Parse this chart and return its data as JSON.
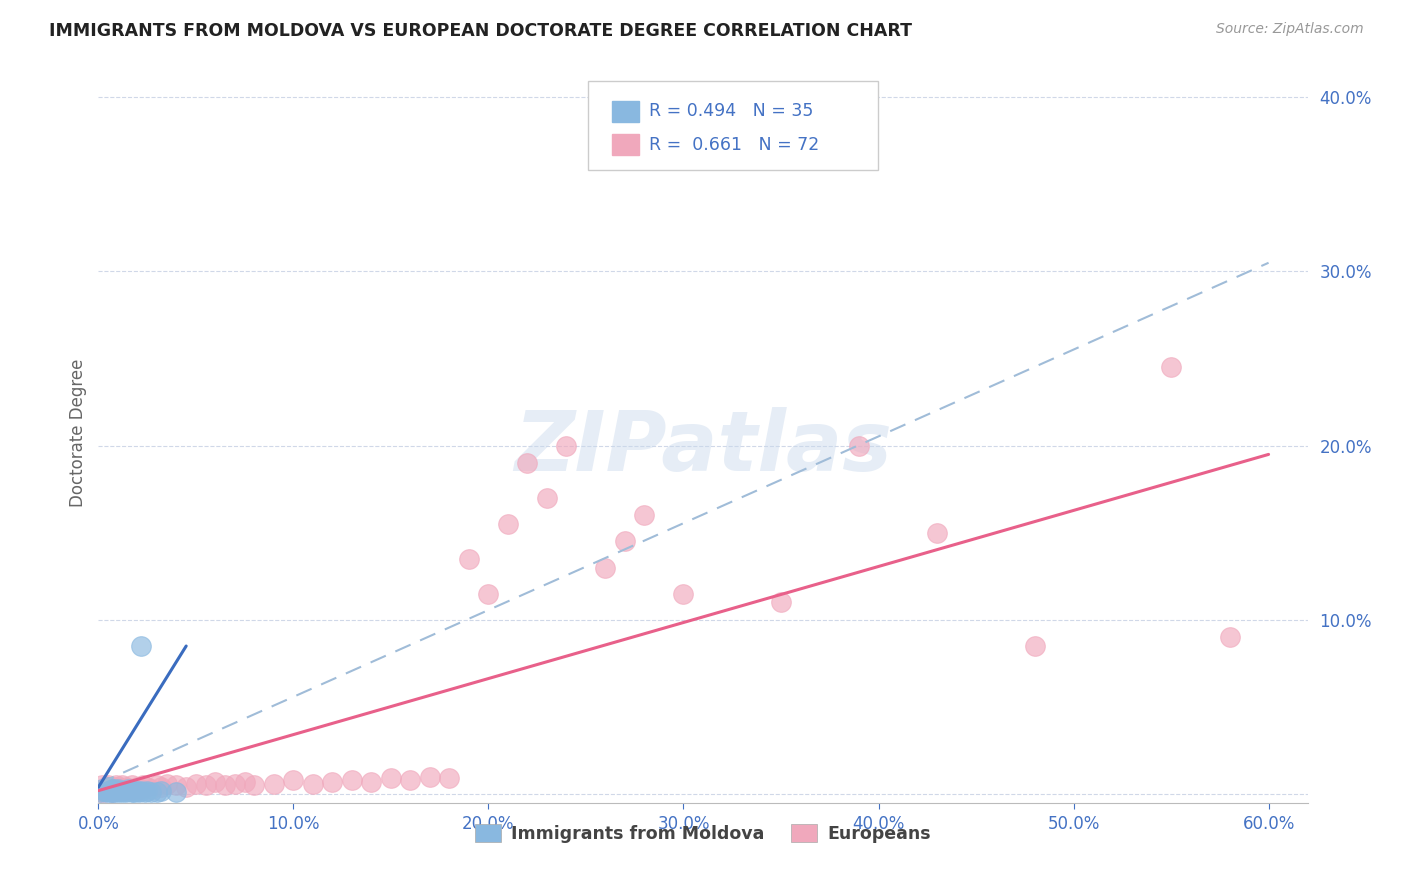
{
  "title": "IMMIGRANTS FROM MOLDOVA VS EUROPEAN DOCTORATE DEGREE CORRELATION CHART",
  "source": "Source: ZipAtlas.com",
  "ylabel_label": "Doctorate Degree",
  "xlim": [
    0.0,
    0.62
  ],
  "ylim": [
    -0.005,
    0.42
  ],
  "xtick_vals": [
    0.0,
    0.1,
    0.2,
    0.3,
    0.4,
    0.5,
    0.6
  ],
  "xtick_labels": [
    "0.0%",
    "10.0%",
    "20.0%",
    "30.0%",
    "40.0%",
    "50.0%",
    "60.0%"
  ],
  "ytick_vals": [
    0.0,
    0.1,
    0.2,
    0.3,
    0.4
  ],
  "ytick_labels": [
    "",
    "10.0%",
    "20.0%",
    "30.0%",
    "40.0%"
  ],
  "moldova_color": "#89b8e0",
  "european_color": "#f0a8bc",
  "moldova_trendline_color": "#3a6cbf",
  "european_trendline_color": "#e8608a",
  "moldova_dashed_color": "#a0bcd8",
  "R_moldova": 0.494,
  "N_moldova": 35,
  "R_european": 0.661,
  "N_european": 72,
  "tick_color": "#4472c4",
  "grid_color": "#d0d8e8",
  "background_color": "#ffffff",
  "watermark": "ZIPatlas",
  "moldova_scatter": [
    [
      0.001,
      0.001
    ],
    [
      0.002,
      0.003
    ],
    [
      0.003,
      0.002
    ],
    [
      0.004,
      0.001
    ],
    [
      0.004,
      0.003
    ],
    [
      0.005,
      0.002
    ],
    [
      0.005,
      0.004
    ],
    [
      0.006,
      0.001
    ],
    [
      0.006,
      0.003
    ],
    [
      0.007,
      0.002
    ],
    [
      0.007,
      0.001
    ],
    [
      0.008,
      0.003
    ],
    [
      0.008,
      0.001
    ],
    [
      0.009,
      0.002
    ],
    [
      0.01,
      0.001
    ],
    [
      0.01,
      0.003
    ],
    [
      0.011,
      0.002
    ],
    [
      0.012,
      0.001
    ],
    [
      0.013,
      0.002
    ],
    [
      0.014,
      0.001
    ],
    [
      0.015,
      0.003
    ],
    [
      0.016,
      0.002
    ],
    [
      0.017,
      0.001
    ],
    [
      0.018,
      0.002
    ],
    [
      0.018,
      0.001
    ],
    [
      0.02,
      0.002
    ],
    [
      0.021,
      0.001
    ],
    [
      0.022,
      0.002
    ],
    [
      0.024,
      0.001
    ],
    [
      0.025,
      0.002
    ],
    [
      0.027,
      0.001
    ],
    [
      0.03,
      0.001
    ],
    [
      0.032,
      0.002
    ],
    [
      0.04,
      0.001
    ],
    [
      0.022,
      0.085
    ]
  ],
  "european_scatter": [
    [
      0.001,
      0.001
    ],
    [
      0.002,
      0.002
    ],
    [
      0.002,
      0.005
    ],
    [
      0.003,
      0.003
    ],
    [
      0.003,
      0.001
    ],
    [
      0.004,
      0.004
    ],
    [
      0.004,
      0.002
    ],
    [
      0.005,
      0.003
    ],
    [
      0.005,
      0.005
    ],
    [
      0.006,
      0.002
    ],
    [
      0.006,
      0.004
    ],
    [
      0.007,
      0.003
    ],
    [
      0.007,
      0.001
    ],
    [
      0.008,
      0.004
    ],
    [
      0.008,
      0.002
    ],
    [
      0.009,
      0.003
    ],
    [
      0.009,
      0.005
    ],
    [
      0.01,
      0.002
    ],
    [
      0.01,
      0.004
    ],
    [
      0.011,
      0.003
    ],
    [
      0.012,
      0.002
    ],
    [
      0.012,
      0.005
    ],
    [
      0.013,
      0.003
    ],
    [
      0.014,
      0.004
    ],
    [
      0.015,
      0.002
    ],
    [
      0.016,
      0.003
    ],
    [
      0.017,
      0.005
    ],
    [
      0.018,
      0.003
    ],
    [
      0.02,
      0.004
    ],
    [
      0.02,
      0.002
    ],
    [
      0.022,
      0.003
    ],
    [
      0.023,
      0.005
    ],
    [
      0.025,
      0.004
    ],
    [
      0.027,
      0.003
    ],
    [
      0.03,
      0.005
    ],
    [
      0.032,
      0.004
    ],
    [
      0.035,
      0.006
    ],
    [
      0.04,
      0.005
    ],
    [
      0.045,
      0.004
    ],
    [
      0.05,
      0.006
    ],
    [
      0.055,
      0.005
    ],
    [
      0.06,
      0.007
    ],
    [
      0.065,
      0.005
    ],
    [
      0.07,
      0.006
    ],
    [
      0.075,
      0.007
    ],
    [
      0.08,
      0.005
    ],
    [
      0.09,
      0.006
    ],
    [
      0.1,
      0.008
    ],
    [
      0.11,
      0.006
    ],
    [
      0.12,
      0.007
    ],
    [
      0.13,
      0.008
    ],
    [
      0.14,
      0.007
    ],
    [
      0.15,
      0.009
    ],
    [
      0.16,
      0.008
    ],
    [
      0.17,
      0.01
    ],
    [
      0.18,
      0.009
    ],
    [
      0.19,
      0.135
    ],
    [
      0.2,
      0.115
    ],
    [
      0.21,
      0.155
    ],
    [
      0.22,
      0.19
    ],
    [
      0.23,
      0.17
    ],
    [
      0.24,
      0.2
    ],
    [
      0.26,
      0.13
    ],
    [
      0.27,
      0.145
    ],
    [
      0.28,
      0.16
    ],
    [
      0.3,
      0.115
    ],
    [
      0.35,
      0.11
    ],
    [
      0.39,
      0.2
    ],
    [
      0.43,
      0.15
    ],
    [
      0.48,
      0.085
    ],
    [
      0.55,
      0.245
    ],
    [
      0.58,
      0.09
    ]
  ],
  "moldova_trendline": [
    [
      0.0,
      0.004
    ],
    [
      0.045,
      0.085
    ]
  ],
  "european_trendline": [
    [
      0.0,
      0.002
    ],
    [
      0.6,
      0.195
    ]
  ],
  "moldova_dashed_trendline": [
    [
      0.0,
      0.006
    ],
    [
      0.6,
      0.305
    ]
  ]
}
